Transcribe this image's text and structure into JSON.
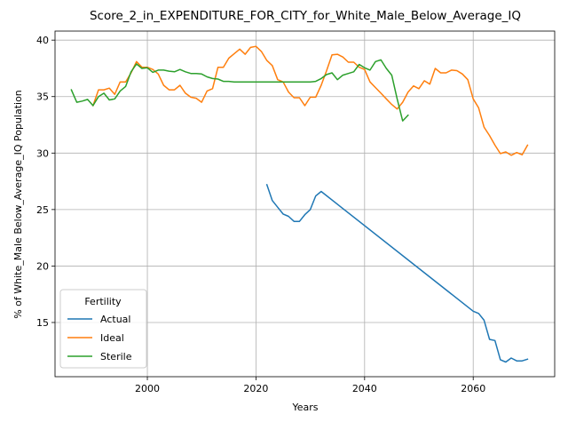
{
  "chart_data": {
    "type": "line",
    "title": "Score_2_in_EXPENDITURE_FOR_CITY_for_White_Male_Below_Average_IQ",
    "xlabel": "Years",
    "ylabel": "% of White_Male Below_Average_IQ Population",
    "xlim": [
      1983,
      2075
    ],
    "ylim": [
      10.2,
      40.8
    ],
    "x_ticks": [
      2000,
      2020,
      2040,
      2060
    ],
    "y_ticks": [
      15,
      20,
      25,
      30,
      35,
      40
    ],
    "grid": true,
    "legend": {
      "title": "Fertility",
      "placement": "lower left"
    },
    "series": [
      {
        "name": "Actual",
        "color": "#1f77b4",
        "points": [
          [
            2022,
            27.2
          ],
          [
            2023,
            25.8
          ],
          [
            2024,
            25.2
          ],
          [
            2025,
            24.6
          ],
          [
            2026,
            24.4
          ],
          [
            2027,
            23.95
          ],
          [
            2028,
            23.95
          ],
          [
            2029,
            24.55
          ],
          [
            2030,
            25.0
          ],
          [
            2031,
            26.2
          ],
          [
            2032,
            26.6
          ],
          [
            2060,
            16.0
          ],
          [
            2061,
            15.8
          ],
          [
            2062,
            15.2
          ],
          [
            2063,
            13.5
          ],
          [
            2064,
            13.4
          ],
          [
            2065,
            11.7
          ],
          [
            2066,
            11.5
          ],
          [
            2067,
            11.85
          ],
          [
            2068,
            11.6
          ],
          [
            2069,
            11.6
          ],
          [
            2070,
            11.75
          ]
        ]
      },
      {
        "name": "Ideal",
        "color": "#ff7f0e",
        "points": [
          [
            1990,
            34.2
          ],
          [
            1991,
            35.6
          ],
          [
            1992,
            35.6
          ],
          [
            1993,
            35.75
          ],
          [
            1994,
            35.2
          ],
          [
            1995,
            36.3
          ],
          [
            1996,
            36.3
          ],
          [
            1997,
            37.1
          ],
          [
            1998,
            38.1
          ],
          [
            1999,
            37.6
          ],
          [
            2000,
            37.6
          ],
          [
            2001,
            37.4
          ],
          [
            2002,
            37.0
          ],
          [
            2003,
            36.0
          ],
          [
            2004,
            35.6
          ],
          [
            2005,
            35.6
          ],
          [
            2006,
            36.0
          ],
          [
            2007,
            35.3
          ],
          [
            2008,
            34.95
          ],
          [
            2009,
            34.85
          ],
          [
            2010,
            34.5
          ],
          [
            2011,
            35.5
          ],
          [
            2012,
            35.7
          ],
          [
            2013,
            37.6
          ],
          [
            2014,
            37.6
          ],
          [
            2015,
            38.4
          ],
          [
            2016,
            38.8
          ],
          [
            2017,
            39.2
          ],
          [
            2018,
            38.75
          ],
          [
            2019,
            39.35
          ],
          [
            2020,
            39.45
          ],
          [
            2021,
            39.0
          ],
          [
            2022,
            38.2
          ],
          [
            2023,
            37.75
          ],
          [
            2024,
            36.5
          ],
          [
            2025,
            36.3
          ],
          [
            2026,
            35.4
          ],
          [
            2027,
            34.9
          ],
          [
            2028,
            34.9
          ],
          [
            2029,
            34.2
          ],
          [
            2030,
            34.95
          ],
          [
            2031,
            34.95
          ],
          [
            2032,
            36.0
          ],
          [
            2033,
            37.3
          ],
          [
            2034,
            38.7
          ],
          [
            2035,
            38.75
          ],
          [
            2036,
            38.5
          ],
          [
            2037,
            38.05
          ],
          [
            2038,
            38.05
          ],
          [
            2039,
            37.6
          ],
          [
            2040,
            37.4
          ],
          [
            2041,
            36.3
          ],
          [
            2042,
            35.8
          ],
          [
            2043,
            35.3
          ],
          [
            2044,
            34.8
          ],
          [
            2045,
            34.3
          ],
          [
            2046,
            33.9
          ],
          [
            2047,
            34.5
          ],
          [
            2048,
            35.4
          ],
          [
            2049,
            35.95
          ],
          [
            2050,
            35.7
          ],
          [
            2051,
            36.4
          ],
          [
            2052,
            36.1
          ],
          [
            2053,
            37.5
          ],
          [
            2054,
            37.1
          ],
          [
            2055,
            37.1
          ],
          [
            2056,
            37.35
          ],
          [
            2057,
            37.3
          ],
          [
            2058,
            37.0
          ],
          [
            2059,
            36.5
          ],
          [
            2060,
            34.8
          ],
          [
            2061,
            34.0
          ],
          [
            2062,
            32.3
          ],
          [
            2063,
            31.55
          ],
          [
            2064,
            30.7
          ],
          [
            2065,
            29.95
          ],
          [
            2066,
            30.1
          ],
          [
            2067,
            29.8
          ],
          [
            2068,
            30.05
          ],
          [
            2069,
            29.85
          ],
          [
            2070,
            30.7
          ]
        ]
      },
      {
        "name": "Sterile",
        "color": "#2ca02c",
        "points": [
          [
            1986,
            35.6
          ],
          [
            1987,
            34.5
          ],
          [
            1988,
            34.6
          ],
          [
            1989,
            34.75
          ],
          [
            1990,
            34.2
          ],
          [
            1991,
            35.0
          ],
          [
            1992,
            35.3
          ],
          [
            1993,
            34.7
          ],
          [
            1994,
            34.8
          ],
          [
            1995,
            35.5
          ],
          [
            1996,
            35.9
          ],
          [
            1997,
            37.2
          ],
          [
            1998,
            37.9
          ],
          [
            1999,
            37.5
          ],
          [
            2000,
            37.55
          ],
          [
            2001,
            37.15
          ],
          [
            2002,
            37.35
          ],
          [
            2003,
            37.35
          ],
          [
            2004,
            37.25
          ],
          [
            2005,
            37.2
          ],
          [
            2006,
            37.4
          ],
          [
            2007,
            37.2
          ],
          [
            2008,
            37.05
          ],
          [
            2009,
            37.05
          ],
          [
            2010,
            37.0
          ],
          [
            2011,
            36.75
          ],
          [
            2012,
            36.6
          ],
          [
            2013,
            36.55
          ],
          [
            2014,
            36.35
          ],
          [
            2015,
            36.35
          ],
          [
            2016,
            36.3
          ],
          [
            2017,
            36.3
          ],
          [
            2018,
            36.3
          ],
          [
            2019,
            36.3
          ],
          [
            2020,
            36.3
          ],
          [
            2021,
            36.3
          ],
          [
            2022,
            36.3
          ],
          [
            2023,
            36.3
          ],
          [
            2024,
            36.3
          ],
          [
            2025,
            36.3
          ],
          [
            2026,
            36.3
          ],
          [
            2027,
            36.3
          ],
          [
            2028,
            36.3
          ],
          [
            2029,
            36.3
          ],
          [
            2030,
            36.3
          ],
          [
            2031,
            36.35
          ],
          [
            2032,
            36.6
          ],
          [
            2033,
            36.95
          ],
          [
            2034,
            37.1
          ],
          [
            2035,
            36.5
          ],
          [
            2036,
            36.9
          ],
          [
            2037,
            37.05
          ],
          [
            2038,
            37.2
          ],
          [
            2039,
            37.85
          ],
          [
            2040,
            37.55
          ],
          [
            2041,
            37.35
          ],
          [
            2042,
            38.1
          ],
          [
            2043,
            38.25
          ],
          [
            2044,
            37.5
          ],
          [
            2045,
            36.9
          ],
          [
            2046,
            34.8
          ],
          [
            2047,
            32.85
          ],
          [
            2048,
            33.35
          ]
        ]
      }
    ]
  }
}
